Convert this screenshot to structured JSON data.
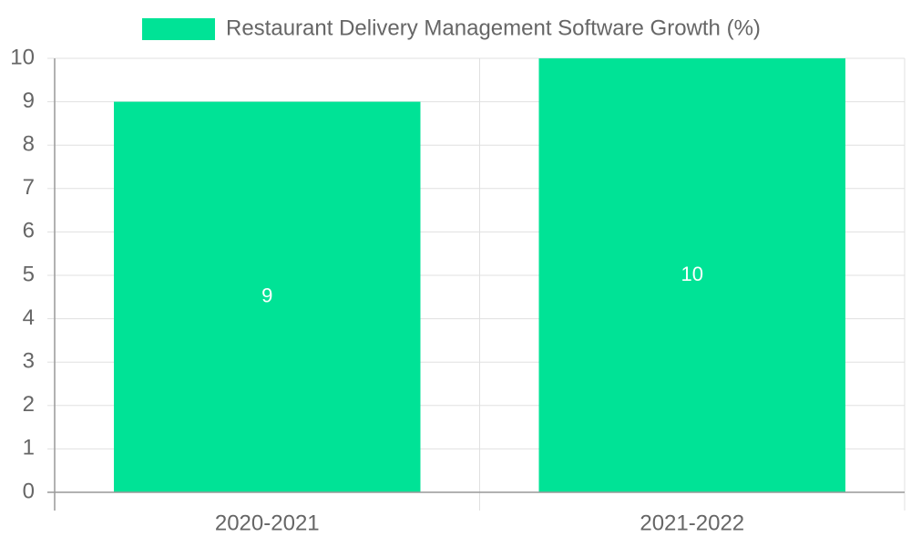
{
  "chart_data": {
    "type": "bar",
    "categories": [
      "2020-2021",
      "2021-2022"
    ],
    "series": [
      {
        "name": "Restaurant Delivery Management Software Growth (%)",
        "values": [
          9,
          10
        ],
        "color": "#00E396"
      }
    ],
    "ylim": [
      0,
      10
    ],
    "yticks": [
      0,
      1,
      2,
      3,
      4,
      5,
      6,
      7,
      8,
      9,
      10
    ],
    "grid": true,
    "legend": "top-center",
    "data_labels": true
  },
  "colors": {
    "gridline": "#e0e0e0",
    "axis": "#999999",
    "text": "#666666",
    "label_text": "#ffffff"
  }
}
